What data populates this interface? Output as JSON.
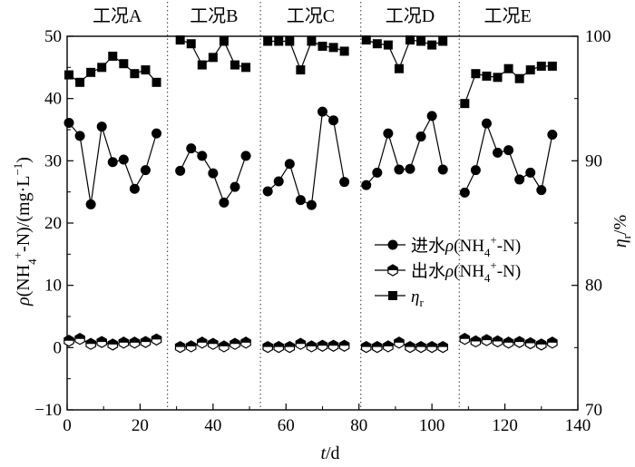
{
  "chart_data": {
    "type": "scatter",
    "phases": [
      "工况A",
      "工况B",
      "工况C",
      "工况D",
      "工况E"
    ],
    "phase_boundaries_x": [
      27.5,
      53,
      80.5,
      107.5
    ],
    "x_axis": {
      "label": "t/d",
      "range": [
        0,
        140
      ],
      "ticks": [
        "0",
        "20",
        "40",
        "60",
        "80",
        "100",
        "120",
        "140"
      ]
    },
    "y_left": {
      "label": "ρ(NH4+-N)/(mg·L−1)",
      "range": [
        -10,
        50
      ],
      "ticks": [
        "−10",
        "0",
        "10",
        "20",
        "30",
        "40",
        "50"
      ]
    },
    "y_right": {
      "label": "ηr/%",
      "range": [
        70,
        100
      ],
      "ticks": [
        "70",
        "80",
        "90",
        "100"
      ]
    },
    "series": [
      {
        "name": "进水ρ(NH4+-N)",
        "legend_label": "进水ρ(NH4+-N)",
        "marker": "filled-circle",
        "axis": "left",
        "segments": [
          [
            [
              0.5,
              36.1
            ],
            [
              3.5,
              34.0
            ],
            [
              6.5,
              23.0
            ],
            [
              9.5,
              35.5
            ],
            [
              12.5,
              29.8
            ],
            [
              15.5,
              30.2
            ],
            [
              18.5,
              25.5
            ],
            [
              21.5,
              28.5
            ],
            [
              24.5,
              34.4
            ]
          ],
          [
            [
              31,
              28.4
            ],
            [
              34,
              32.0
            ],
            [
              37,
              30.8
            ],
            [
              40,
              28.0
            ],
            [
              43,
              23.3
            ],
            [
              46,
              25.8
            ],
            [
              49,
              30.8
            ]
          ],
          [
            [
              55,
              25.1
            ],
            [
              58,
              26.7
            ],
            [
              61,
              29.5
            ],
            [
              64,
              23.7
            ],
            [
              67,
              22.9
            ],
            [
              70,
              37.9
            ],
            [
              73,
              36.5
            ],
            [
              76,
              26.6
            ]
          ],
          [
            [
              82,
              26.1
            ],
            [
              85,
              28.1
            ],
            [
              88,
              34.4
            ],
            [
              91,
              28.6
            ],
            [
              94,
              28.7
            ],
            [
              97,
              33.9
            ],
            [
              100,
              37.2
            ],
            [
              103,
              28.6
            ]
          ],
          [
            [
              109,
              24.9
            ],
            [
              112,
              28.5
            ],
            [
              115,
              36.0
            ],
            [
              118,
              31.3
            ],
            [
              121,
              31.7
            ],
            [
              124,
              27.0
            ],
            [
              127,
              28.1
            ],
            [
              130,
              25.3
            ],
            [
              133,
              34.2
            ]
          ]
        ]
      },
      {
        "name": "出水ρ(NH4+-N)",
        "legend_label": "出水ρ(NH4+-N)",
        "marker": "half-filled-hexagon",
        "axis": "left",
        "segments": [
          [
            [
              0.5,
              1.1
            ],
            [
              3.5,
              1.4
            ],
            [
              6.5,
              0.6
            ],
            [
              9.5,
              0.9
            ],
            [
              12.5,
              0.5
            ],
            [
              15.5,
              0.8
            ],
            [
              18.5,
              0.8
            ],
            [
              21.5,
              0.9
            ],
            [
              24.5,
              1.3
            ]
          ],
          [
            [
              31,
              0.1
            ],
            [
              34,
              0.2
            ],
            [
              37,
              0.8
            ],
            [
              40,
              0.6
            ],
            [
              43,
              0.2
            ],
            [
              46,
              0.6
            ],
            [
              49,
              0.8
            ]
          ],
          [
            [
              55,
              0.1
            ],
            [
              58,
              0.1
            ],
            [
              61,
              0.1
            ],
            [
              64,
              0.6
            ],
            [
              67,
              0.2
            ],
            [
              70,
              0.3
            ],
            [
              73,
              0.3
            ],
            [
              76,
              0.3
            ]
          ],
          [
            [
              82,
              0.1
            ],
            [
              85,
              0.1
            ],
            [
              88,
              0.2
            ],
            [
              91,
              0.8
            ],
            [
              94,
              0.1
            ],
            [
              97,
              0.1
            ],
            [
              100,
              0.1
            ],
            [
              103,
              0.1
            ]
          ],
          [
            [
              109,
              1.4
            ],
            [
              112,
              1.0
            ],
            [
              115,
              1.2
            ],
            [
              118,
              1.0
            ],
            [
              121,
              0.8
            ],
            [
              124,
              0.9
            ],
            [
              127,
              0.7
            ],
            [
              130,
              0.5
            ],
            [
              133,
              0.8
            ]
          ]
        ]
      },
      {
        "name": "ηr",
        "legend_label": "ηr",
        "marker": "filled-square",
        "axis": "right",
        "segments": [
          [
            [
              0.5,
              96.9
            ],
            [
              3.5,
              96.3
            ],
            [
              6.5,
              97.1
            ],
            [
              9.5,
              97.5
            ],
            [
              12.5,
              98.4
            ],
            [
              15.5,
              97.8
            ],
            [
              18.5,
              97.0
            ],
            [
              21.5,
              97.3
            ],
            [
              24.5,
              96.3
            ]
          ],
          [
            [
              31,
              99.7
            ],
            [
              34,
              99.4
            ],
            [
              37,
              97.7
            ],
            [
              40,
              98.3
            ],
            [
              43,
              99.6
            ],
            [
              46,
              97.7
            ],
            [
              49,
              97.5
            ]
          ],
          [
            [
              55,
              99.6
            ],
            [
              58,
              99.6
            ],
            [
              61,
              99.6
            ],
            [
              64,
              97.3
            ],
            [
              67,
              99.6
            ],
            [
              70,
              99.2
            ],
            [
              73,
              99.1
            ],
            [
              76,
              98.8
            ]
          ],
          [
            [
              82,
              99.7
            ],
            [
              85,
              99.4
            ],
            [
              88,
              99.3
            ],
            [
              91,
              97.4
            ],
            [
              94,
              99.7
            ],
            [
              97,
              99.6
            ],
            [
              100,
              99.3
            ],
            [
              103,
              99.6
            ]
          ],
          [
            [
              109,
              94.6
            ],
            [
              112,
              97.0
            ],
            [
              115,
              96.8
            ],
            [
              118,
              96.7
            ],
            [
              121,
              97.4
            ],
            [
              124,
              96.6
            ],
            [
              127,
              97.3
            ],
            [
              130,
              97.6
            ],
            [
              133,
              97.6
            ]
          ]
        ]
      }
    ],
    "grid": false,
    "legend_position": "center-right"
  }
}
